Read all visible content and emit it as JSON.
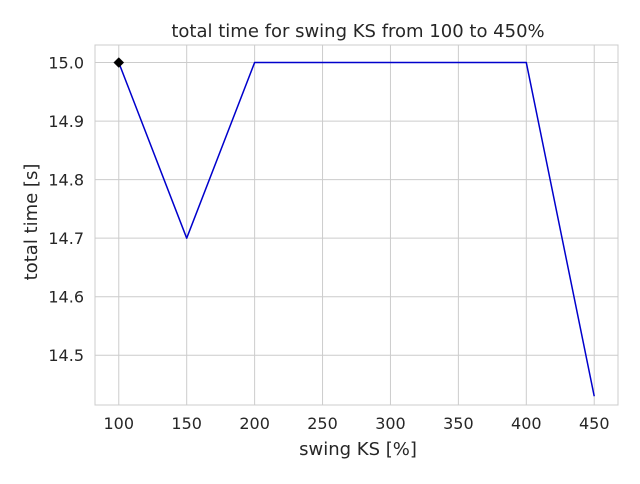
{
  "chart_data": {
    "type": "line",
    "title": "total time for swing KS from 100 to 450%",
    "xlabel": "swing KS [%]",
    "ylabel": "total time [s]",
    "x": [
      100,
      150,
      200,
      250,
      300,
      350,
      400,
      450
    ],
    "series": [
      {
        "values": [
          15.0,
          14.7,
          15.0,
          15.0,
          15.0,
          15.0,
          15.0,
          14.43
        ],
        "color": "#0000cc"
      }
    ],
    "highlight_point": {
      "x": 100,
      "y": 15.0,
      "marker": "diamond",
      "color": "#000000"
    },
    "xlim": [
      82.5,
      467.5
    ],
    "ylim": [
      14.415,
      15.03
    ],
    "xticks": [
      "100",
      "150",
      "200",
      "250",
      "300",
      "350",
      "400",
      "450"
    ],
    "yticks": [
      "14.5",
      "14.6",
      "14.7",
      "14.8",
      "14.9",
      "15.0"
    ],
    "ytick_values": [
      14.5,
      14.6,
      14.7,
      14.8,
      14.9,
      15.0
    ],
    "grid": true,
    "grid_color": "#cccccc",
    "spine_color": "#cccccc"
  }
}
